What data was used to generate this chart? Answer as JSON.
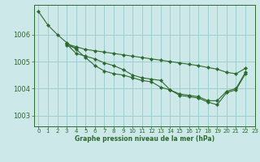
{
  "background_color": "#cde8e8",
  "grid_color": "#9ecece",
  "line_color": "#2d6a2d",
  "marker_color": "#2d6a2d",
  "title": "Graphe pression niveau de la mer (hPa)",
  "xlim": [
    -0.5,
    23
  ],
  "ylim": [
    1002.6,
    1007.1
  ],
  "yticks": [
    1003,
    1004,
    1005,
    1006
  ],
  "xtick_labels": [
    "0",
    "1",
    "2",
    "3",
    "4",
    "5",
    "6",
    "7",
    "8",
    "9",
    "10",
    "11",
    "12",
    "13",
    "14",
    "15",
    "16",
    "17",
    "18",
    "19",
    "20",
    "21",
    "22",
    "23"
  ],
  "series": [
    [
      1006.85,
      1006.35,
      1006.0,
      1005.7,
      1005.45,
      1005.15,
      1004.85,
      1004.65,
      1004.55,
      1004.5,
      1004.4,
      1004.3,
      1004.25,
      1004.05,
      1003.95,
      1003.8,
      1003.75,
      1003.7,
      1003.55,
      1003.55,
      1003.9,
      1004.0,
      1004.6,
      null
    ],
    [
      null,
      null,
      null,
      1005.6,
      1005.5,
      null,
      null,
      null,
      null,
      null,
      null,
      null,
      null,
      null,
      null,
      null,
      null,
      null,
      null,
      null,
      null,
      null,
      null,
      null
    ],
    [
      null,
      null,
      null,
      1005.65,
      1005.55,
      1005.45,
      1005.4,
      1005.35,
      1005.3,
      1005.25,
      1005.2,
      1005.15,
      1005.1,
      1005.05,
      1005.0,
      1004.95,
      1004.9,
      1004.85,
      1004.78,
      1004.72,
      1004.6,
      1004.55,
      1004.75,
      null
    ],
    [
      null,
      null,
      null,
      1005.65,
      1005.3,
      1005.2,
      1005.1,
      1004.95,
      1004.85,
      1004.7,
      1004.5,
      1004.4,
      1004.35,
      1004.3,
      1003.95,
      1003.75,
      1003.7,
      1003.65,
      1003.5,
      1003.4,
      1003.85,
      1003.95,
      1004.55,
      null
    ]
  ]
}
